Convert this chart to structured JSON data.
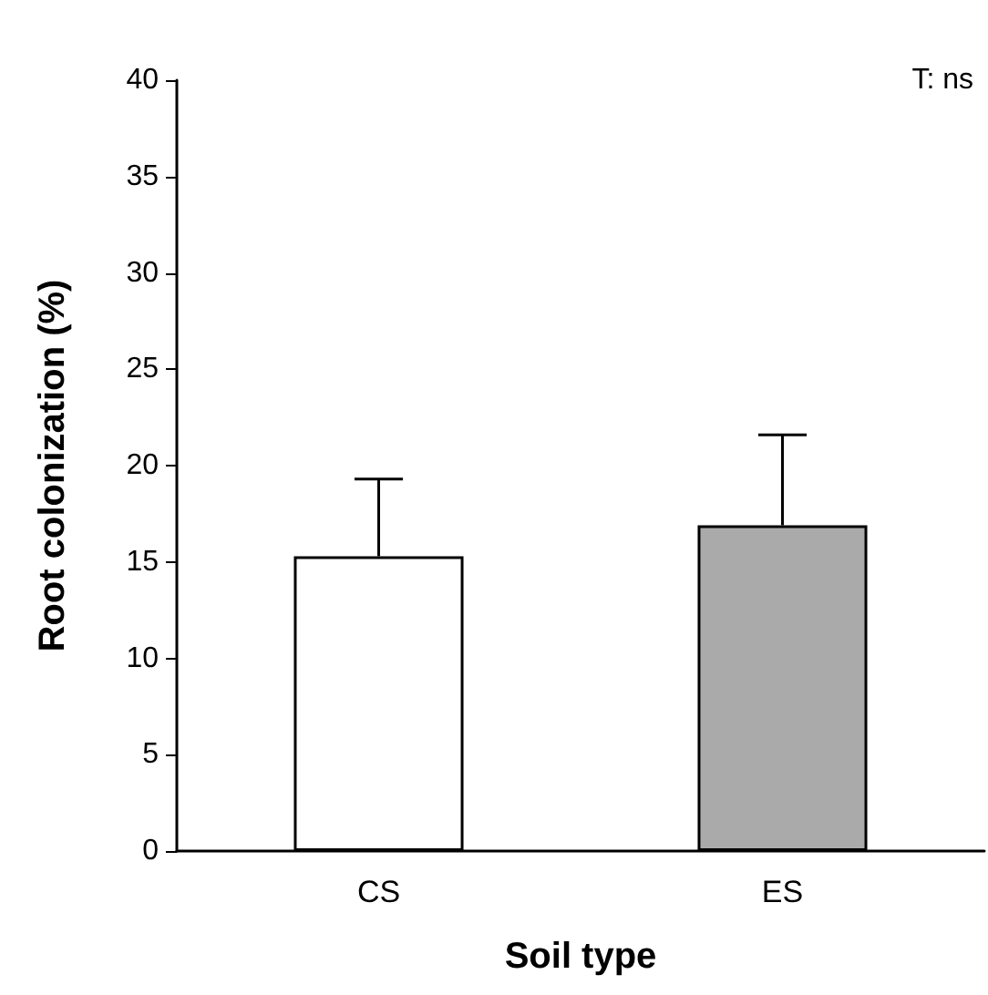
{
  "chart_data": {
    "type": "bar",
    "xlabel": "Soil type",
    "ylabel": "Root colonization (%)",
    "categories": [
      "CS",
      "ES"
    ],
    "values": [
      15.3,
      16.9
    ],
    "colors": [
      "#ffffff",
      "#aaaaaa"
    ],
    "errors": [
      [
        15.3,
        19.3
      ],
      [
        16.9,
        21.6
      ]
    ],
    "ylim": [
      0,
      40
    ],
    "yticks": [
      0,
      5,
      10,
      15,
      20,
      25,
      30,
      35,
      40
    ],
    "grid": false,
    "annotations": [
      "T: ns"
    ]
  }
}
